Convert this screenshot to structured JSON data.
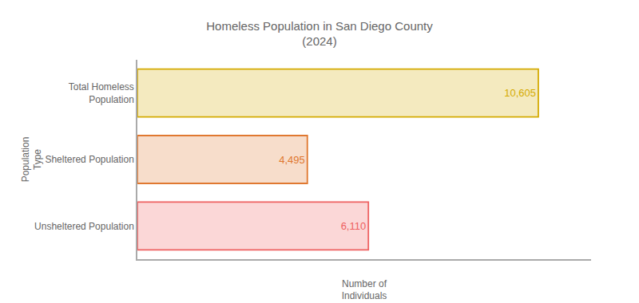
{
  "chart_data": {
    "type": "bar",
    "orientation": "horizontal",
    "title": "Homeless Population in San Diego County\n(2024)",
    "xlabel": "Number of\nIndividuals",
    "ylabel": "Population\nType",
    "categories": [
      "Unsheltered Population",
      "Sheltered Population",
      "Total Homeless\nPopulation"
    ],
    "values": [
      6110,
      4495,
      10605
    ],
    "value_labels": [
      "6,110",
      "4,495",
      "10,605"
    ],
    "data_labels": true,
    "colors": [
      "#EE6060",
      "#E07830",
      "#D4AA00"
    ],
    "xlim": [
      0,
      12000
    ],
    "xticks": [],
    "tick_labels": "y",
    "grid": false
  }
}
